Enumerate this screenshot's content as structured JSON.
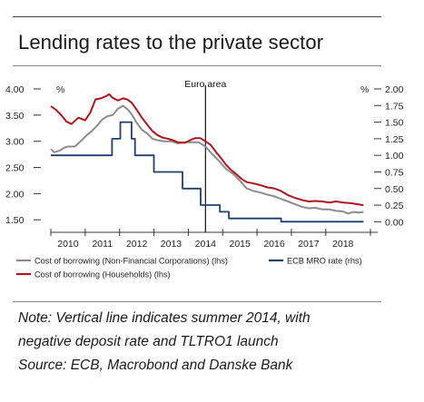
{
  "title": "Lending rates to the private sector",
  "note_lines": [
    "Note: Vertical line indicates summer 2014, with",
    "negative deposit rate and TLTRO1 launch",
    "Source: ECB, Macrobond and Danske Bank"
  ],
  "chart_data": {
    "type": "line",
    "x_tick_labels": [
      "2010",
      "2011",
      "2012",
      "2013",
      "2014",
      "2015",
      "2016",
      "2017",
      "2018"
    ],
    "xlim": [
      2009.5,
      2018.8
    ],
    "y_left": {
      "unit_label": "%",
      "lim": [
        1.4,
        4.0
      ],
      "ticks": [
        "4.00",
        "3.50",
        "3.00",
        "2.50",
        "2.00",
        "1.50"
      ]
    },
    "y_right": {
      "unit_label": "%",
      "lim": [
        -0.05,
        2.0
      ],
      "ticks": [
        "2.00",
        "1.75",
        "1.50",
        "1.25",
        "1.00",
        "0.75",
        "0.50",
        "0.25",
        "0.00"
      ]
    },
    "vline": {
      "x": 2014.0,
      "label": "Euro area"
    },
    "colors": {
      "corporations": "#8c8c8c",
      "households": "#b0141e",
      "mro": "#1f3f6e"
    },
    "series": [
      {
        "name": "Cost of borrowing (Non-Financial Corporations) (lhs)",
        "axis": "left",
        "points": [
          [
            2009.5,
            2.85
          ],
          [
            2009.6,
            2.79
          ],
          [
            2009.75,
            2.82
          ],
          [
            2009.9,
            2.88
          ],
          [
            2010.0,
            2.9
          ],
          [
            2010.2,
            2.9
          ],
          [
            2010.4,
            3.02
          ],
          [
            2010.55,
            3.12
          ],
          [
            2010.7,
            3.2
          ],
          [
            2010.85,
            3.3
          ],
          [
            2011.0,
            3.42
          ],
          [
            2011.15,
            3.48
          ],
          [
            2011.3,
            3.5
          ],
          [
            2011.45,
            3.62
          ],
          [
            2011.6,
            3.68
          ],
          [
            2011.75,
            3.6
          ],
          [
            2011.85,
            3.52
          ],
          [
            2012.0,
            3.35
          ],
          [
            2012.15,
            3.22
          ],
          [
            2012.3,
            3.15
          ],
          [
            2012.45,
            3.05
          ],
          [
            2012.6,
            3.02
          ],
          [
            2012.8,
            3.0
          ],
          [
            2013.0,
            3.0
          ],
          [
            2013.2,
            2.96
          ],
          [
            2013.4,
            2.98
          ],
          [
            2013.6,
            2.98
          ],
          [
            2013.8,
            2.98
          ],
          [
            2014.0,
            2.9
          ],
          [
            2014.2,
            2.75
          ],
          [
            2014.4,
            2.62
          ],
          [
            2014.6,
            2.47
          ],
          [
            2014.8,
            2.38
          ],
          [
            2015.0,
            2.25
          ],
          [
            2015.2,
            2.1
          ],
          [
            2015.4,
            2.05
          ],
          [
            2015.6,
            2.02
          ],
          [
            2015.8,
            1.98
          ],
          [
            2016.0,
            1.95
          ],
          [
            2016.2,
            1.9
          ],
          [
            2016.4,
            1.85
          ],
          [
            2016.6,
            1.8
          ],
          [
            2016.8,
            1.75
          ],
          [
            2017.0,
            1.72
          ],
          [
            2017.2,
            1.73
          ],
          [
            2017.4,
            1.7
          ],
          [
            2017.6,
            1.7
          ],
          [
            2017.8,
            1.67
          ],
          [
            2018.0,
            1.66
          ],
          [
            2018.15,
            1.62
          ],
          [
            2018.3,
            1.65
          ],
          [
            2018.45,
            1.64
          ],
          [
            2018.6,
            1.65
          ]
        ]
      },
      {
        "name": "ECB MRO rate (rhs)",
        "axis": "right",
        "points": [
          [
            2009.5,
            1.0
          ],
          [
            2011.28,
            1.0
          ],
          [
            2011.28,
            1.25
          ],
          [
            2011.52,
            1.25
          ],
          [
            2011.52,
            1.5
          ],
          [
            2011.85,
            1.5
          ],
          [
            2011.85,
            1.25
          ],
          [
            2011.95,
            1.25
          ],
          [
            2011.95,
            1.0
          ],
          [
            2012.5,
            1.0
          ],
          [
            2012.5,
            0.75
          ],
          [
            2013.33,
            0.75
          ],
          [
            2013.33,
            0.5
          ],
          [
            2013.86,
            0.5
          ],
          [
            2013.86,
            0.25
          ],
          [
            2014.42,
            0.25
          ],
          [
            2014.42,
            0.15
          ],
          [
            2014.68,
            0.15
          ],
          [
            2014.68,
            0.05
          ],
          [
            2016.2,
            0.05
          ],
          [
            2016.2,
            0.0
          ],
          [
            2018.6,
            0.0
          ]
        ]
      },
      {
        "name": "Cost of borrowing (Households) (lhs)",
        "axis": "left",
        "points": [
          [
            2009.5,
            3.67
          ],
          [
            2009.65,
            3.6
          ],
          [
            2009.8,
            3.5
          ],
          [
            2009.95,
            3.38
          ],
          [
            2010.1,
            3.33
          ],
          [
            2010.3,
            3.45
          ],
          [
            2010.5,
            3.4
          ],
          [
            2010.65,
            3.55
          ],
          [
            2010.8,
            3.8
          ],
          [
            2010.95,
            3.82
          ],
          [
            2011.1,
            3.86
          ],
          [
            2011.2,
            3.9
          ],
          [
            2011.3,
            3.83
          ],
          [
            2011.45,
            3.78
          ],
          [
            2011.6,
            3.82
          ],
          [
            2011.72,
            3.8
          ],
          [
            2011.85,
            3.74
          ],
          [
            2012.0,
            3.6
          ],
          [
            2012.15,
            3.45
          ],
          [
            2012.3,
            3.32
          ],
          [
            2012.45,
            3.2
          ],
          [
            2012.6,
            3.12
          ],
          [
            2012.75,
            3.07
          ],
          [
            2012.9,
            3.05
          ],
          [
            2013.05,
            3.02
          ],
          [
            2013.2,
            2.98
          ],
          [
            2013.4,
            2.97
          ],
          [
            2013.55,
            3.02
          ],
          [
            2013.7,
            3.06
          ],
          [
            2013.85,
            3.06
          ],
          [
            2014.0,
            3.0
          ],
          [
            2014.15,
            2.93
          ],
          [
            2014.3,
            2.8
          ],
          [
            2014.45,
            2.68
          ],
          [
            2014.6,
            2.55
          ],
          [
            2014.75,
            2.45
          ],
          [
            2014.9,
            2.37
          ],
          [
            2015.05,
            2.28
          ],
          [
            2015.2,
            2.22
          ],
          [
            2015.35,
            2.2
          ],
          [
            2015.5,
            2.18
          ],
          [
            2015.65,
            2.15
          ],
          [
            2015.8,
            2.12
          ],
          [
            2016.0,
            2.1
          ],
          [
            2016.2,
            2.05
          ],
          [
            2016.4,
            1.97
          ],
          [
            2016.6,
            1.92
          ],
          [
            2016.8,
            1.88
          ],
          [
            2017.0,
            1.85
          ],
          [
            2017.2,
            1.86
          ],
          [
            2017.4,
            1.85
          ],
          [
            2017.6,
            1.83
          ],
          [
            2017.8,
            1.85
          ],
          [
            2018.0,
            1.83
          ],
          [
            2018.2,
            1.82
          ],
          [
            2018.4,
            1.8
          ],
          [
            2018.6,
            1.78
          ]
        ]
      }
    ]
  }
}
